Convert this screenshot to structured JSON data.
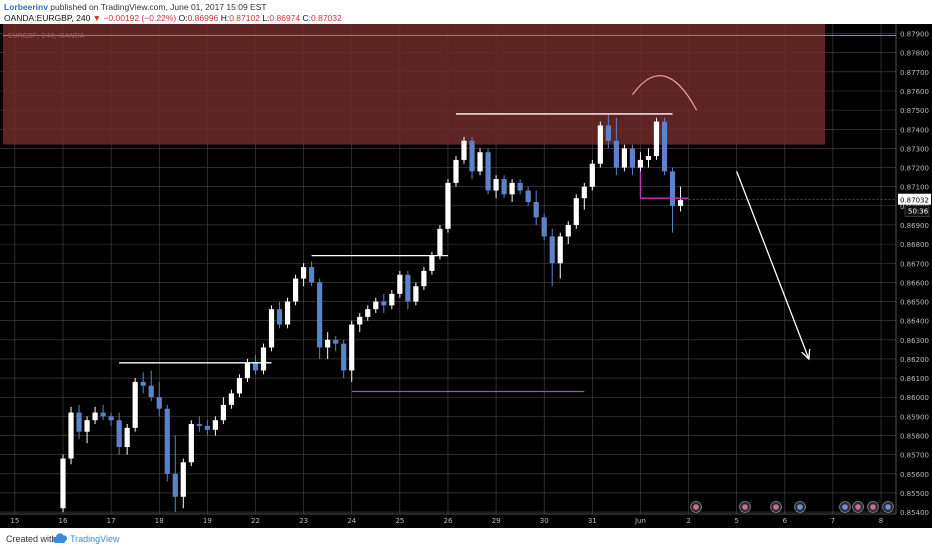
{
  "header": {
    "author": "Lorbeerinv",
    "published_text": " published on TradingView.com, June 01, 2017 15:09 EST",
    "symbol": "OANDA:EURGBP, 240",
    "change": "▼ −0.00192 (−0.22%)",
    "o_label": "O:",
    "o_value": "0.86996",
    "h_label": "H:",
    "h_value": "0.87102",
    "l_label": "L:",
    "l_value": "0.86974",
    "c_label": "C:",
    "c_value": "0.87032"
  },
  "footer": {
    "created": "Created with",
    "brand": "TradingView",
    "logo_icon": "tradingview-cloud-icon"
  },
  "colors": {
    "background": "#000000",
    "grid": "#4a4a4a",
    "bull": "#ffffff",
    "bear": "#5b84c8",
    "zone": "#6e2a2a",
    "support": "#c03cc0",
    "resistance": "#ffffff",
    "arrow": "#ffffff",
    "top_line": "#7f9f3a",
    "price_badge": "#ffffff"
  },
  "chart_data": {
    "type": "candlestick",
    "watermark": "EURGBP, 240, OANDA",
    "price_label": "0.87032",
    "countdown_label": "50:36",
    "ylim": [
      0.8539,
      0.8795
    ],
    "y_ticks": [
      "0.87900",
      "0.87800",
      "0.87700",
      "0.87600",
      "0.87500",
      "0.87400",
      "0.87300",
      "0.87200",
      "0.87100",
      "0.87000",
      "0.86900",
      "0.86800",
      "0.86700",
      "0.86600",
      "0.86500",
      "0.86400",
      "0.86300",
      "0.86200",
      "0.86100",
      "0.86000",
      "0.85900",
      "0.85800",
      "0.85700",
      "0.85600",
      "0.85500",
      "0.85400"
    ],
    "x_ticks": [
      "15",
      "16",
      "17",
      "18",
      "19",
      "22",
      "23",
      "24",
      "25",
      "26",
      "29",
      "30",
      "31",
      "Jun",
      "2",
      "5",
      "6",
      "7",
      "8"
    ],
    "x_tick_index": [
      -6,
      0,
      6,
      12,
      18,
      24,
      30,
      36,
      42,
      48,
      54,
      60,
      66,
      72,
      78,
      84,
      90,
      96,
      102
    ],
    "candles": [
      {
        "o": 0.8542,
        "h": 0.857,
        "l": 0.854,
        "c": 0.8568
      },
      {
        "o": 0.8568,
        "h": 0.8595,
        "l": 0.8565,
        "c": 0.8592
      },
      {
        "o": 0.8592,
        "h": 0.8596,
        "l": 0.8578,
        "c": 0.8582
      },
      {
        "o": 0.8582,
        "h": 0.859,
        "l": 0.8576,
        "c": 0.8588
      },
      {
        "o": 0.8588,
        "h": 0.8595,
        "l": 0.8586,
        "c": 0.8592
      },
      {
        "o": 0.8592,
        "h": 0.8596,
        "l": 0.8588,
        "c": 0.859
      },
      {
        "o": 0.859,
        "h": 0.8592,
        "l": 0.8585,
        "c": 0.8588
      },
      {
        "o": 0.8588,
        "h": 0.8592,
        "l": 0.857,
        "c": 0.8574
      },
      {
        "o": 0.8574,
        "h": 0.8586,
        "l": 0.857,
        "c": 0.8584
      },
      {
        "o": 0.8584,
        "h": 0.861,
        "l": 0.8582,
        "c": 0.8608
      },
      {
        "o": 0.8608,
        "h": 0.8613,
        "l": 0.8602,
        "c": 0.8606
      },
      {
        "o": 0.8606,
        "h": 0.8614,
        "l": 0.8598,
        "c": 0.86
      },
      {
        "o": 0.86,
        "h": 0.8608,
        "l": 0.859,
        "c": 0.8594
      },
      {
        "o": 0.8594,
        "h": 0.8596,
        "l": 0.8556,
        "c": 0.856
      },
      {
        "o": 0.856,
        "h": 0.858,
        "l": 0.854,
        "c": 0.8548
      },
      {
        "o": 0.8548,
        "h": 0.8568,
        "l": 0.8542,
        "c": 0.8566
      },
      {
        "o": 0.8566,
        "h": 0.8588,
        "l": 0.8564,
        "c": 0.8586
      },
      {
        "o": 0.8586,
        "h": 0.859,
        "l": 0.8582,
        "c": 0.8585
      },
      {
        "o": 0.8585,
        "h": 0.8588,
        "l": 0.858,
        "c": 0.8583
      },
      {
        "o": 0.8583,
        "h": 0.859,
        "l": 0.858,
        "c": 0.8588
      },
      {
        "o": 0.8588,
        "h": 0.86,
        "l": 0.8586,
        "c": 0.8596
      },
      {
        "o": 0.8596,
        "h": 0.8604,
        "l": 0.8594,
        "c": 0.8602
      },
      {
        "o": 0.8602,
        "h": 0.8612,
        "l": 0.86,
        "c": 0.861
      },
      {
        "o": 0.861,
        "h": 0.862,
        "l": 0.8608,
        "c": 0.8618
      },
      {
        "o": 0.8618,
        "h": 0.8622,
        "l": 0.8612,
        "c": 0.8614
      },
      {
        "o": 0.8614,
        "h": 0.8628,
        "l": 0.8612,
        "c": 0.8626
      },
      {
        "o": 0.8626,
        "h": 0.8648,
        "l": 0.8624,
        "c": 0.8646
      },
      {
        "o": 0.8646,
        "h": 0.865,
        "l": 0.8636,
        "c": 0.8638
      },
      {
        "o": 0.8638,
        "h": 0.8652,
        "l": 0.8636,
        "c": 0.865
      },
      {
        "o": 0.865,
        "h": 0.8664,
        "l": 0.8648,
        "c": 0.8662
      },
      {
        "o": 0.8662,
        "h": 0.867,
        "l": 0.8658,
        "c": 0.8668
      },
      {
        "o": 0.8668,
        "h": 0.8671,
        "l": 0.8658,
        "c": 0.866
      },
      {
        "o": 0.866,
        "h": 0.8662,
        "l": 0.862,
        "c": 0.8626
      },
      {
        "o": 0.8626,
        "h": 0.8634,
        "l": 0.862,
        "c": 0.863
      },
      {
        "o": 0.863,
        "h": 0.8632,
        "l": 0.8624,
        "c": 0.8628
      },
      {
        "o": 0.8628,
        "h": 0.863,
        "l": 0.861,
        "c": 0.8614
      },
      {
        "o": 0.8614,
        "h": 0.864,
        "l": 0.8608,
        "c": 0.8638
      },
      {
        "o": 0.8638,
        "h": 0.8644,
        "l": 0.8634,
        "c": 0.8642
      },
      {
        "o": 0.8642,
        "h": 0.8648,
        "l": 0.864,
        "c": 0.8646
      },
      {
        "o": 0.8646,
        "h": 0.8652,
        "l": 0.8644,
        "c": 0.865
      },
      {
        "o": 0.865,
        "h": 0.8654,
        "l": 0.8644,
        "c": 0.8648
      },
      {
        "o": 0.8648,
        "h": 0.8656,
        "l": 0.8646,
        "c": 0.8654
      },
      {
        "o": 0.8654,
        "h": 0.8666,
        "l": 0.8652,
        "c": 0.8664
      },
      {
        "o": 0.8664,
        "h": 0.8666,
        "l": 0.8646,
        "c": 0.865
      },
      {
        "o": 0.865,
        "h": 0.866,
        "l": 0.8648,
        "c": 0.8658
      },
      {
        "o": 0.8658,
        "h": 0.8668,
        "l": 0.8656,
        "c": 0.8666
      },
      {
        "o": 0.8666,
        "h": 0.8676,
        "l": 0.8664,
        "c": 0.8674
      },
      {
        "o": 0.8674,
        "h": 0.869,
        "l": 0.8672,
        "c": 0.8688
      },
      {
        "o": 0.8688,
        "h": 0.8714,
        "l": 0.8686,
        "c": 0.8712
      },
      {
        "o": 0.8712,
        "h": 0.8726,
        "l": 0.871,
        "c": 0.8724
      },
      {
        "o": 0.8724,
        "h": 0.8736,
        "l": 0.8722,
        "c": 0.8734
      },
      {
        "o": 0.8734,
        "h": 0.8736,
        "l": 0.8714,
        "c": 0.8718
      },
      {
        "o": 0.8718,
        "h": 0.873,
        "l": 0.8716,
        "c": 0.8728
      },
      {
        "o": 0.8728,
        "h": 0.873,
        "l": 0.8706,
        "c": 0.8708
      },
      {
        "o": 0.8708,
        "h": 0.8716,
        "l": 0.8704,
        "c": 0.8714
      },
      {
        "o": 0.8714,
        "h": 0.8716,
        "l": 0.8704,
        "c": 0.8706
      },
      {
        "o": 0.8706,
        "h": 0.8714,
        "l": 0.8702,
        "c": 0.8712
      },
      {
        "o": 0.8712,
        "h": 0.8714,
        "l": 0.8706,
        "c": 0.8708
      },
      {
        "o": 0.8708,
        "h": 0.871,
        "l": 0.87,
        "c": 0.8702
      },
      {
        "o": 0.8702,
        "h": 0.8708,
        "l": 0.869,
        "c": 0.8694
      },
      {
        "o": 0.8694,
        "h": 0.8696,
        "l": 0.8682,
        "c": 0.8684
      },
      {
        "o": 0.8684,
        "h": 0.8688,
        "l": 0.8658,
        "c": 0.867
      },
      {
        "o": 0.867,
        "h": 0.8686,
        "l": 0.8662,
        "c": 0.8684
      },
      {
        "o": 0.8684,
        "h": 0.8692,
        "l": 0.868,
        "c": 0.869
      },
      {
        "o": 0.869,
        "h": 0.8706,
        "l": 0.8688,
        "c": 0.8704
      },
      {
        "o": 0.8704,
        "h": 0.8712,
        "l": 0.8698,
        "c": 0.871
      },
      {
        "o": 0.871,
        "h": 0.8724,
        "l": 0.8708,
        "c": 0.8722
      },
      {
        "o": 0.8722,
        "h": 0.8744,
        "l": 0.872,
        "c": 0.8742
      },
      {
        "o": 0.8742,
        "h": 0.8748,
        "l": 0.873,
        "c": 0.8734
      },
      {
        "o": 0.8734,
        "h": 0.8746,
        "l": 0.8716,
        "c": 0.872
      },
      {
        "o": 0.872,
        "h": 0.8732,
        "l": 0.8718,
        "c": 0.873
      },
      {
        "o": 0.873,
        "h": 0.8732,
        "l": 0.8716,
        "c": 0.872
      },
      {
        "o": 0.872,
        "h": 0.8728,
        "l": 0.8712,
        "c": 0.8724
      },
      {
        "o": 0.8724,
        "h": 0.873,
        "l": 0.872,
        "c": 0.8726
      },
      {
        "o": 0.8726,
        "h": 0.8746,
        "l": 0.8724,
        "c": 0.8744
      },
      {
        "o": 0.8744,
        "h": 0.8746,
        "l": 0.8716,
        "c": 0.8718
      },
      {
        "o": 0.8718,
        "h": 0.872,
        "l": 0.8686,
        "c": 0.87
      },
      {
        "o": 0.87,
        "h": 0.871,
        "l": 0.8697,
        "c": 0.8703
      }
    ],
    "resistance_zone": [
      0.8732,
      0.8795
    ],
    "drawn_lines": [
      {
        "from": [
          7,
          0.8618
        ],
        "to": [
          26,
          0.8618
        ],
        "color": "resistance"
      },
      {
        "from": [
          31,
          0.8674
        ],
        "to": [
          48,
          0.8674
        ],
        "color": "resistance"
      },
      {
        "from": [
          36,
          0.8603
        ],
        "to": [
          65,
          0.8603
        ],
        "color": "support"
      },
      {
        "from": [
          49,
          0.8748
        ],
        "to": [
          76,
          0.8748
        ],
        "color": "resistance"
      },
      {
        "from": [
          72,
          0.8704
        ],
        "to": [
          78,
          0.8704
        ],
        "color": "support"
      },
      {
        "from": [
          72,
          0.8718
        ],
        "to": [
          72,
          0.8704
        ],
        "color": "support"
      }
    ],
    "arrow": {
      "from": [
        84,
        0.8718
      ],
      "to": [
        93,
        0.862
      ]
    },
    "arc": {
      "from": [
        71,
        0.8758
      ],
      "peak": [
        75,
        0.8772
      ],
      "to": [
        79,
        0.875
      ]
    }
  }
}
